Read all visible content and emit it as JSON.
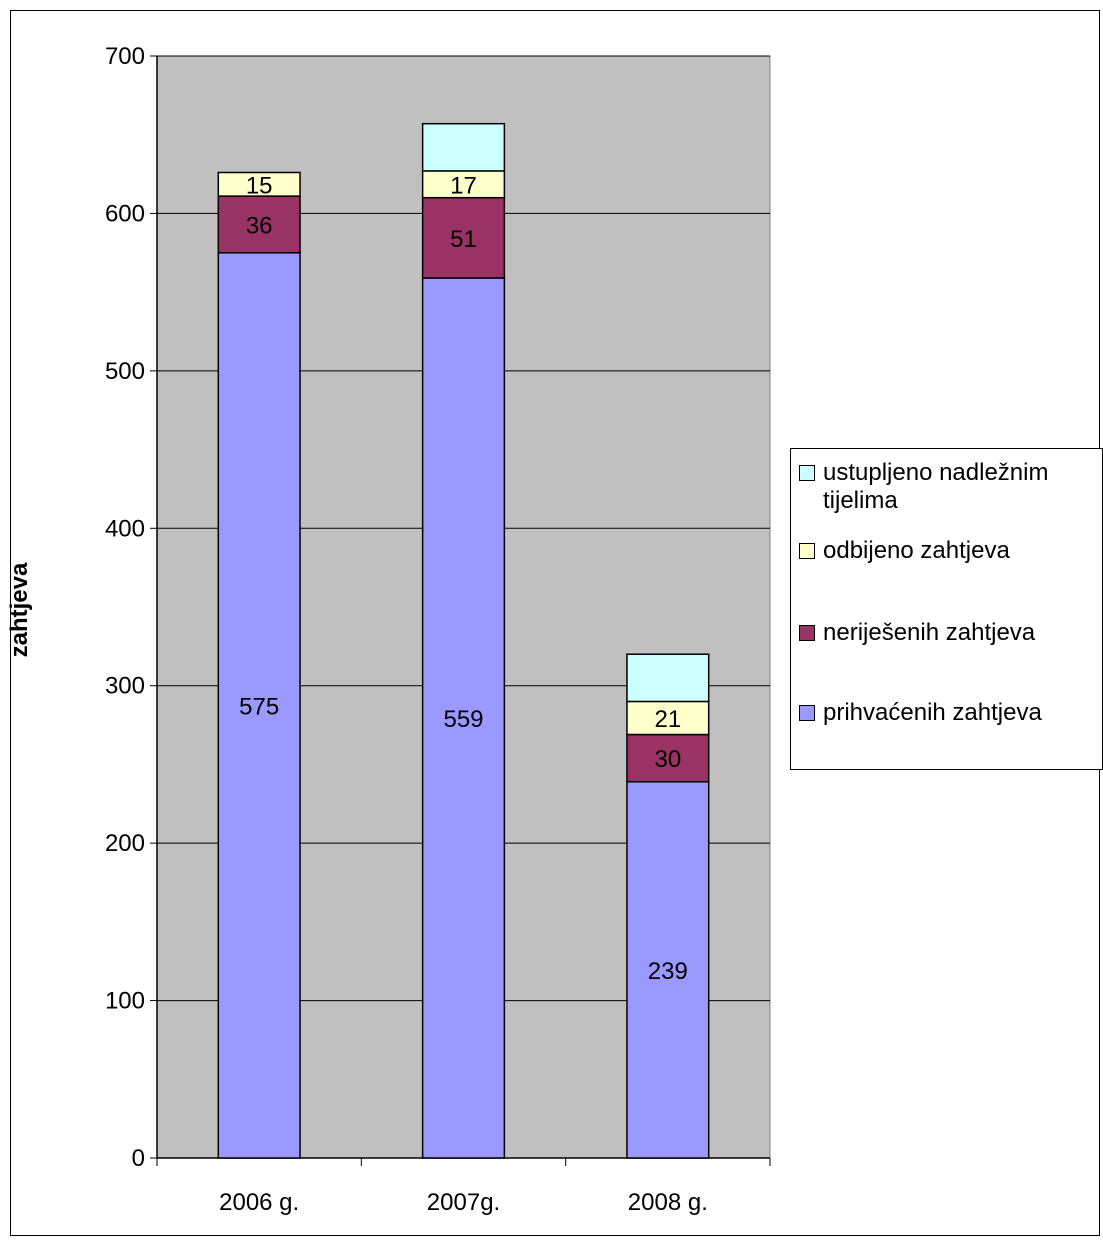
{
  "chart_data": {
    "type": "bar",
    "stacked": true,
    "categories": [
      "2006 g.",
      "2007g.",
      "2008 g."
    ],
    "series": [
      {
        "name": "prihvaćenih zahtjeva",
        "values": [
          575,
          559,
          239
        ],
        "color": "#9999FF",
        "labels": [
          "575",
          "559",
          "239"
        ]
      },
      {
        "name": "neriješenih zahtjeva",
        "values": [
          36,
          51,
          30
        ],
        "color": "#993366",
        "labels": [
          "36",
          "51",
          "30"
        ]
      },
      {
        "name": "odbijeno zahtjeva",
        "values": [
          15,
          17,
          21
        ],
        "color": "#FFFFCC",
        "labels": [
          "15",
          "17",
          "21"
        ]
      },
      {
        "name": "ustupljeno nadležnim tijelima",
        "values": [
          0,
          30,
          30
        ],
        "color": "#CCFFFF",
        "labels": [
          "",
          "",
          ""
        ]
      }
    ],
    "ylabel": "zahtjeva",
    "ylim": [
      0,
      700
    ],
    "yticks": [
      "0",
      "100",
      "200",
      "300",
      "400",
      "500",
      "600",
      "700"
    ],
    "grid": true,
    "plot_background": "#C0C0C0",
    "legend_position": "right",
    "legend_order": [
      "ustupljeno nadležnim tijelima",
      "odbijeno zahtjeva",
      "neriješenih zahtjeva",
      "prihvaćenih zahtjeva"
    ]
  }
}
